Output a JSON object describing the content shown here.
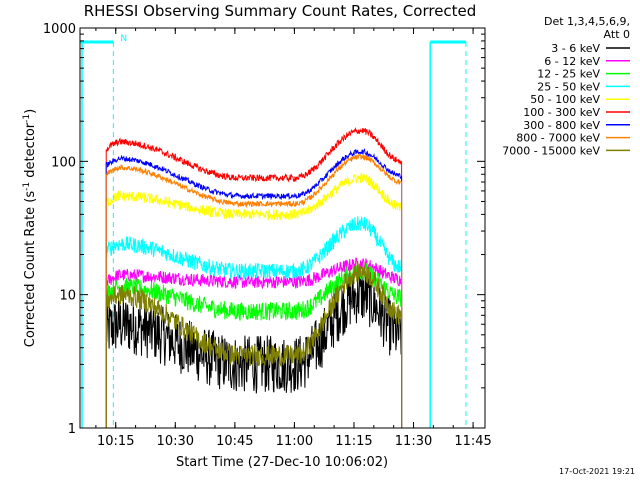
{
  "chart_data": {
    "type": "line",
    "title": "RHESSI Observing Summary Count Rates, Corrected",
    "xlabel": "Start Time (27-Dec-10 10:06:02)",
    "ylabel_main": "Corrected Count Rate (s",
    "ylabel_sup1": "-1",
    "ylabel_mid": " detector",
    "ylabel_sup2": "-1",
    "ylabel_end": ")",
    "y_scale": "log",
    "ylim": [
      1,
      1000
    ],
    "xlim_minutes": [
      10.1,
      11.8
    ],
    "x_ticks": [
      {
        "label": "10:15",
        "value": 10.25
      },
      {
        "label": "10:30",
        "value": 10.5
      },
      {
        "label": "10:45",
        "value": 10.75
      },
      {
        "label": "11:00",
        "value": 11.0
      },
      {
        "label": "11:15",
        "value": 11.25
      },
      {
        "label": "11:30",
        "value": 11.5
      },
      {
        "label": "11:45",
        "value": 11.75
      }
    ],
    "y_ticks": [
      {
        "label": "1",
        "value": 1
      },
      {
        "label": "10",
        "value": 10
      },
      {
        "label": "100",
        "value": 100
      },
      {
        "label": "1000",
        "value": 1000
      }
    ],
    "legend_header": [
      "Det 1,3,4,5,6,9,",
      "Att 0"
    ],
    "legend_position": "right",
    "series": [
      {
        "name": "3 - 6 keV",
        "color": "#000000",
        "start": 6.0,
        "mid": 3.0,
        "peak": 10.0,
        "end": 5.0,
        "noise": 0.22
      },
      {
        "name": "6 - 12 keV",
        "color": "#ff00ff",
        "start": 14.0,
        "mid": 12.5,
        "peak": 17.0,
        "end": 13.0,
        "noise": 0.05
      },
      {
        "name": "12 - 25 keV",
        "color": "#00ff00",
        "start": 11.5,
        "mid": 7.5,
        "peak": 15.0,
        "end": 9.5,
        "noise": 0.07
      },
      {
        "name": "25 - 50 keV",
        "color": "#00ffff",
        "start": 24.0,
        "mid": 15.0,
        "peak": 34.0,
        "end": 16.0,
        "noise": 0.06
      },
      {
        "name": "50 - 100 keV",
        "color": "#ffff00",
        "start": 55.0,
        "mid": 40.0,
        "peak": 75.0,
        "end": 45.0,
        "noise": 0.04
      },
      {
        "name": "100 - 300 keV",
        "color": "#ff0000",
        "start": 140.0,
        "mid": 75.0,
        "peak": 170.0,
        "end": 100.0,
        "noise": 0.025
      },
      {
        "name": "300 - 800 keV",
        "color": "#0000ff",
        "start": 105.0,
        "mid": 55.0,
        "peak": 118.0,
        "end": 78.0,
        "noise": 0.02
      },
      {
        "name": "800 - 7000 keV",
        "color": "#ff8000",
        "start": 90.0,
        "mid": 48.0,
        "peak": 108.0,
        "end": 70.0,
        "noise": 0.02
      },
      {
        "name": "7000 - 15000 keV",
        "color": "#808000",
        "start": 10.0,
        "mid": 3.5,
        "peak": 15.0,
        "end": 7.0,
        "noise": 0.08
      }
    ],
    "data_time_range": [
      10.21,
      11.45
    ],
    "peak_time": 11.28,
    "trough_time": 10.78,
    "night_bars": [
      {
        "label": "N",
        "start": 10.24,
        "dash_start": 10.24,
        "bar_from": 10.1
      },
      {
        "label": "",
        "start": 11.57,
        "dash_start": 11.72,
        "bar_to": 11.72
      }
    ],
    "timestamp": "17-Oct-2021 19:21"
  }
}
